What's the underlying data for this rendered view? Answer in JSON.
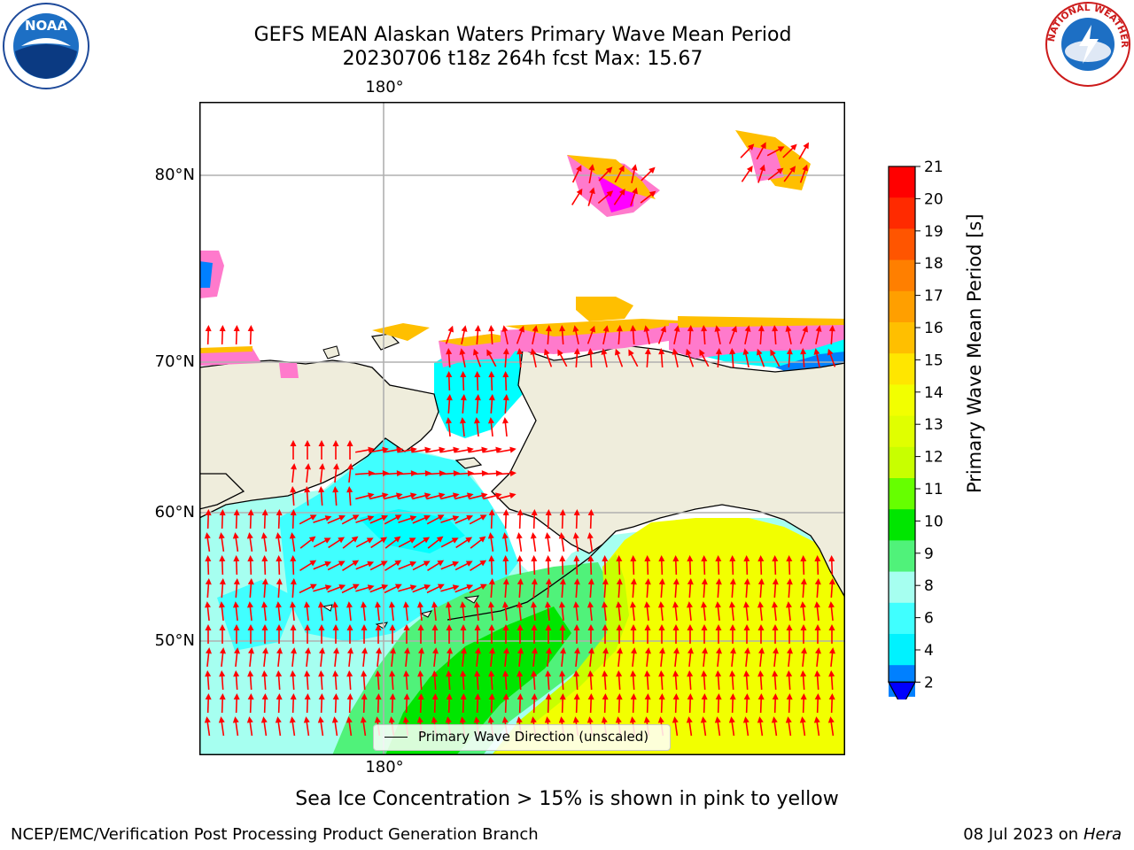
{
  "title": {
    "line1": "GEFS MEAN Alaskan Waters Primary Wave Mean Period",
    "line2": "20230706 t18z 264h fcst   Max: 15.67"
  },
  "axes": {
    "lon_top": "180°",
    "lon_bottom": "180°",
    "lat": [
      "80°N",
      "70°N",
      "60°N",
      "50°N"
    ]
  },
  "legend": {
    "label": "Primary Wave Direction (unscaled)"
  },
  "colorbar": {
    "title": "Primary Wave Mean Period [s]",
    "ticks": [
      "21",
      "20",
      "19",
      "18",
      "17",
      "16",
      "15",
      "14",
      "13",
      "12",
      "11",
      "10",
      "9",
      "8",
      "6",
      "4",
      "2"
    ],
    "colors": [
      "#ff0000",
      "#ff2a00",
      "#ff5500",
      "#ff7f00",
      "#ff9f00",
      "#ffbf00",
      "#ffe600",
      "#f2ff00",
      "#e0ff00",
      "#c8ff00",
      "#66ff00",
      "#00e600",
      "#50f27a",
      "#a6fff0",
      "#40ffff",
      "#00f2ff",
      "#0080ff"
    ],
    "extend_color": "#0000ff"
  },
  "footnote": "Sea Ice Concentration > 15% is shown in pink to yellow",
  "credit": "NCEP/EMC/Verification Post Processing Product Generation Branch",
  "date": {
    "text": "08 Jul 2023 on ",
    "machine": "Hera"
  },
  "logos": {
    "noaa": "NOAA",
    "nws": "NATIONAL WEATHER SERVICE"
  },
  "colors": {
    "land": "#efeddc",
    "ocean_cyan": "#00ffff",
    "ocean_light": "#a6fff0",
    "ocean_green": "#50f27a",
    "ocean_yellow": "#f2ff00",
    "arrow": "#ff0000",
    "grid": "#b0b0b0"
  }
}
